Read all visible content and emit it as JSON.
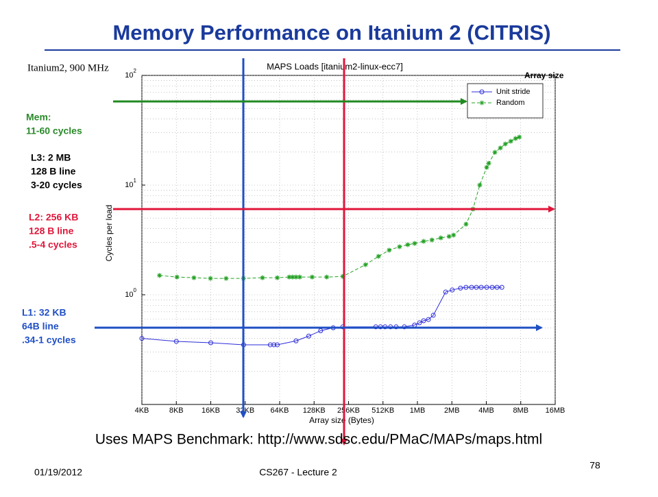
{
  "slide": {
    "title": "Memory Performance on Itanium 2 (CITRIS)",
    "machine": "Itanium2, 900 MHz",
    "array_size_note": "Array size",
    "annotations": [
      {
        "lines": [
          "Mem:",
          "11-60 cycles"
        ],
        "color": "#2a8a2a"
      },
      {
        "lines": [
          "L3: 2 MB",
          "128 B line",
          "3-20 cycles"
        ],
        "color": "#000000"
      },
      {
        "lines": [
          "L2: 256 KB",
          "128 B line",
          ".5-4 cycles"
        ],
        "color": "#e0163a"
      },
      {
        "lines": [
          "L1: 32 KB",
          "64B line",
          ".34-1 cycles"
        ],
        "color": "#1f4fc4"
      }
    ],
    "footer_note": "Uses MAPS Benchmark: http://www.sdsc.edu/PMaC/MAPs/maps.html",
    "date": "01/19/2012",
    "course": "CS267 - Lecture 2",
    "page": "78"
  },
  "chart_data": {
    "type": "line",
    "title": "MAPS Loads [itanium2-linux-ecc7]",
    "x_label": "Array size (Bytes)",
    "y_label": "Cycles per load",
    "xscale": "log",
    "yscale": "log",
    "grid": true,
    "legend": "upper right",
    "xlim": [
      4,
      16384
    ],
    "xticks": [
      {
        "value": 4,
        "label": "4KB"
      },
      {
        "value": 8,
        "label": "8KB"
      },
      {
        "value": 16,
        "label": "16KB"
      },
      {
        "value": 32,
        "label": "32KB"
      },
      {
        "value": 64,
        "label": "64KB"
      },
      {
        "value": 128,
        "label": "128KB"
      },
      {
        "value": 256,
        "label": "256KB"
      },
      {
        "value": 512,
        "label": "512KB"
      },
      {
        "value": 1024,
        "label": "1MB"
      },
      {
        "value": 2048,
        "label": "2MB"
      },
      {
        "value": 4096,
        "label": "4MB"
      },
      {
        "value": 8192,
        "label": "8MB"
      },
      {
        "value": 16384,
        "label": "16MB"
      }
    ],
    "ylim": [
      0.1,
      100
    ],
    "yticks": [
      {
        "value": 1,
        "label": "10^0"
      },
      {
        "value": 10,
        "label": "10^1"
      },
      {
        "value": 100,
        "label": "10^2"
      }
    ],
    "series": [
      {
        "name": "Unit stride",
        "color": "#2b2bd8",
        "marker": "circle",
        "dash": false,
        "x": [
          4,
          8,
          16,
          31,
          53,
          57,
          61,
          89,
          115,
          146,
          188,
          228,
          443,
          487,
          534,
          596,
          667,
          787,
          968,
          1067,
          1160,
          1278,
          1409,
          1807,
          2063,
          2437,
          2723,
          3043,
          3355,
          3698,
          4126,
          4609,
          5080,
          5600
        ],
        "values": [
          0.4,
          0.376,
          0.365,
          0.35,
          0.35,
          0.35,
          0.35,
          0.38,
          0.42,
          0.47,
          0.5,
          0.51,
          0.51,
          0.51,
          0.51,
          0.51,
          0.51,
          0.51,
          0.53,
          0.555,
          0.58,
          0.595,
          0.65,
          1.06,
          1.105,
          1.15,
          1.17,
          1.17,
          1.17,
          1.17,
          1.17,
          1.17,
          1.17,
          1.17
        ]
      },
      {
        "name": "Random",
        "color": "#22a022",
        "marker": "star",
        "dash": true,
        "x": [
          5.7,
          8.1,
          11.4,
          15.9,
          21.8,
          30.9,
          45.3,
          61,
          77.6,
          83,
          89,
          96,
          123,
          165,
          228,
          360,
          468,
          580,
          714,
          843,
          968,
          1160,
          1370,
          1640,
          1937,
          2120,
          2723,
          3130,
          3590,
          4126,
          4300,
          4870,
          5440,
          6000,
          6700,
          7380,
          7970
        ],
        "values": [
          1.5,
          1.45,
          1.43,
          1.41,
          1.41,
          1.41,
          1.43,
          1.43,
          1.45,
          1.45,
          1.45,
          1.45,
          1.45,
          1.45,
          1.47,
          1.88,
          2.24,
          2.55,
          2.74,
          2.86,
          2.94,
          3.07,
          3.16,
          3.3,
          3.4,
          3.5,
          4.4,
          6.04,
          10.0,
          14.5,
          15.8,
          19.9,
          21.8,
          23.7,
          25.1,
          26.6,
          27.4
        ]
      }
    ]
  }
}
